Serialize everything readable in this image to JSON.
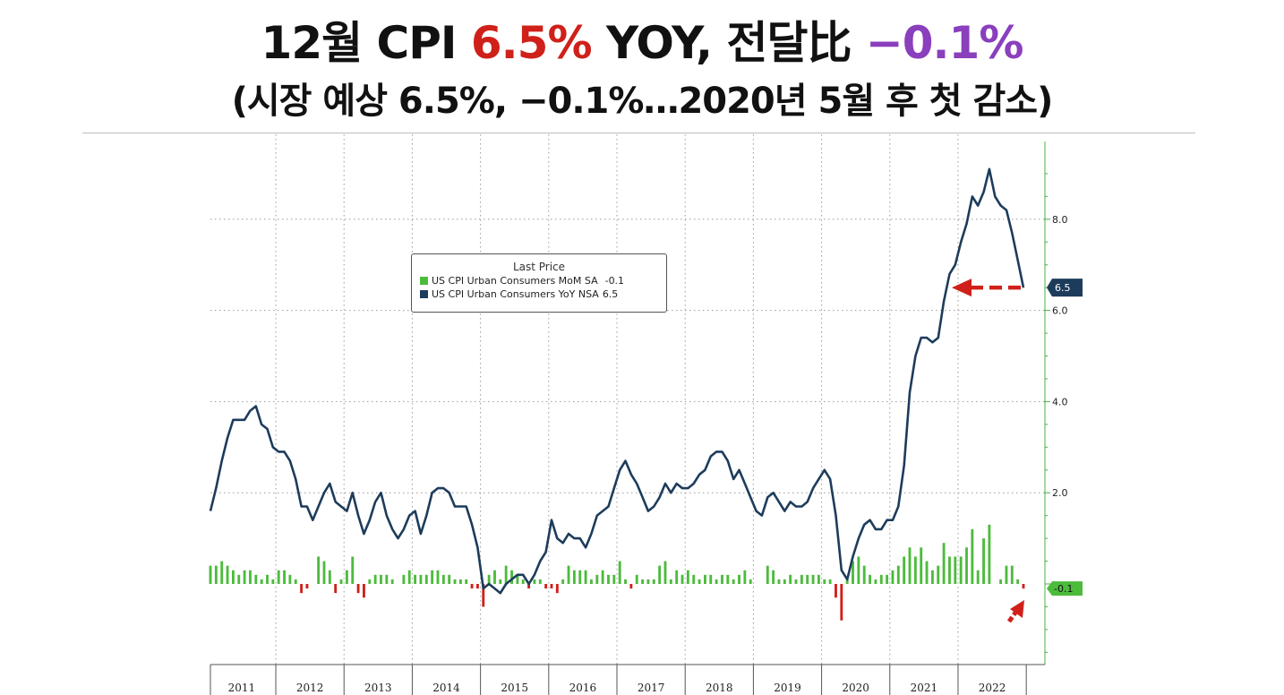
{
  "header": {
    "title_pre": "12월 CPI ",
    "title_yoy": "6.5%",
    "title_mid": " YOY, 전달比 ",
    "title_mom": "−0.1%",
    "subtitle": "(시장 예상 6.5%, −0.1%…2020년 5월 후 첫 감소)"
  },
  "colors": {
    "yoy_line": "#1d3c5b",
    "mom_positive": "#4cbb3c",
    "mom_negative": "#d0201a",
    "highlight_red": "#d0201a",
    "highlight_purple": "#8a3fbd",
    "axis_green": "#47b342",
    "badge_navy": "#1d3c5b"
  },
  "chart_data": {
    "type": "line+bar",
    "legend": {
      "title": "Last Price",
      "items": [
        {
          "name": "US CPI Urban Consumers MoM SA",
          "last": "-0.1",
          "color": "#4cbb3c"
        },
        {
          "name": "US CPI Urban Consumers YoY NSA",
          "last": "6.5",
          "color": "#1d3c5b"
        }
      ]
    },
    "x_start": "2011-01",
    "x_ticks": [
      "2011",
      "2012",
      "2013",
      "2014",
      "2015",
      "2016",
      "2017",
      "2018",
      "2019",
      "2020",
      "2021",
      "2022"
    ],
    "y_ticks": [
      "8.0",
      "6.0",
      "4.0",
      "2.0"
    ],
    "ylim": [
      -1.8,
      9.6
    ],
    "grid": true,
    "badges": {
      "yoy": "6.5",
      "mom": "-0.1"
    },
    "series": [
      {
        "name": "US CPI Urban Consumers YoY NSA",
        "kind": "line",
        "values": [
          1.6,
          2.1,
          2.7,
          3.2,
          3.6,
          3.6,
          3.6,
          3.8,
          3.9,
          3.5,
          3.4,
          3.0,
          2.9,
          2.9,
          2.7,
          2.3,
          1.7,
          1.7,
          1.4,
          1.7,
          2.0,
          2.2,
          1.8,
          1.7,
          1.6,
          2.0,
          1.5,
          1.1,
          1.4,
          1.8,
          2.0,
          1.5,
          1.2,
          1.0,
          1.2,
          1.5,
          1.6,
          1.1,
          1.5,
          2.0,
          2.1,
          2.1,
          2.0,
          1.7,
          1.7,
          1.7,
          1.3,
          0.8,
          -0.1,
          0.0,
          -0.1,
          -0.2,
          0.0,
          0.1,
          0.2,
          0.2,
          0.0,
          0.2,
          0.5,
          0.7,
          1.4,
          1.0,
          0.9,
          1.1,
          1.0,
          1.0,
          0.8,
          1.1,
          1.5,
          1.6,
          1.7,
          2.1,
          2.5,
          2.7,
          2.4,
          2.2,
          1.9,
          1.6,
          1.7,
          1.9,
          2.2,
          2.0,
          2.2,
          2.1,
          2.1,
          2.2,
          2.4,
          2.5,
          2.8,
          2.9,
          2.9,
          2.7,
          2.3,
          2.5,
          2.2,
          1.9,
          1.6,
          1.5,
          1.9,
          2.0,
          1.8,
          1.6,
          1.8,
          1.7,
          1.7,
          1.8,
          2.1,
          2.3,
          2.5,
          2.3,
          1.5,
          0.3,
          0.1,
          0.6,
          1.0,
          1.3,
          1.4,
          1.2,
          1.2,
          1.4,
          1.4,
          1.7,
          2.6,
          4.2,
          5.0,
          5.4,
          5.4,
          5.3,
          5.4,
          6.2,
          6.8,
          7.0,
          7.5,
          7.9,
          8.5,
          8.3,
          8.6,
          9.1,
          8.5,
          8.3,
          8.2,
          7.7,
          7.1,
          6.5
        ]
      },
      {
        "name": "US CPI Urban Consumers MoM SA",
        "kind": "bar",
        "values": [
          0.4,
          0.4,
          0.5,
          0.4,
          0.3,
          0.2,
          0.3,
          0.3,
          0.2,
          0.1,
          0.2,
          0.1,
          0.3,
          0.3,
          0.2,
          0.1,
          -0.2,
          -0.1,
          0.0,
          0.6,
          0.5,
          0.3,
          -0.2,
          0.1,
          0.3,
          0.6,
          -0.2,
          -0.3,
          0.1,
          0.2,
          0.2,
          0.2,
          0.1,
          0.0,
          0.2,
          0.3,
          0.2,
          0.2,
          0.2,
          0.3,
          0.3,
          0.2,
          0.2,
          0.1,
          0.1,
          0.1,
          -0.1,
          -0.1,
          -0.5,
          0.2,
          0.3,
          0.1,
          0.4,
          0.3,
          0.2,
          0.1,
          -0.1,
          0.1,
          0.1,
          -0.1,
          -0.1,
          -0.2,
          0.1,
          0.4,
          0.3,
          0.3,
          0.3,
          0.1,
          0.2,
          0.3,
          0.2,
          0.2,
          0.5,
          0.1,
          -0.1,
          0.2,
          0.1,
          0.1,
          0.1,
          0.4,
          0.5,
          0.1,
          0.3,
          0.2,
          0.3,
          0.2,
          0.1,
          0.2,
          0.2,
          0.1,
          0.2,
          0.2,
          0.1,
          0.2,
          0.3,
          0.1,
          0.0,
          0.0,
          0.4,
          0.3,
          0.1,
          0.1,
          0.2,
          0.1,
          0.2,
          0.2,
          0.2,
          0.2,
          0.1,
          0.1,
          -0.3,
          -0.8,
          0.1,
          0.5,
          0.6,
          0.4,
          0.2,
          0.1,
          0.2,
          0.2,
          0.3,
          0.4,
          0.6,
          0.8,
          0.6,
          0.8,
          0.5,
          0.3,
          0.4,
          0.9,
          0.6,
          0.6,
          0.6,
          0.8,
          1.2,
          0.3,
          1.0,
          1.3,
          0.0,
          0.1,
          0.4,
          0.4,
          0.1,
          -0.1
        ]
      }
    ]
  }
}
